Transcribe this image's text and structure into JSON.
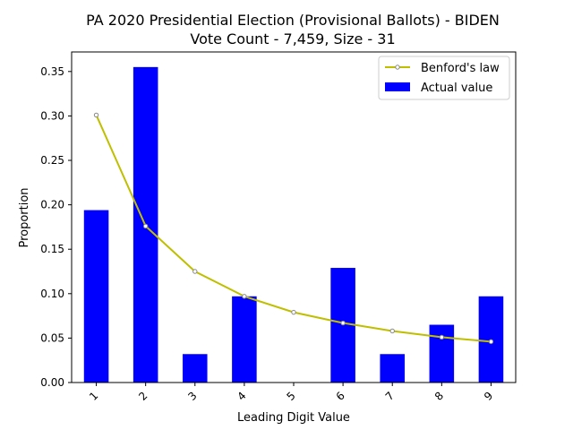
{
  "chart_data": {
    "type": "bar",
    "title_line1": "PA 2020 Presidential Election (Provisional Ballots) - BIDEN",
    "title_line2": "Vote Count - 7,459, Size - 31",
    "xlabel": "Leading Digit Value",
    "ylabel": "Proportion",
    "categories": [
      "1",
      "2",
      "3",
      "4",
      "5",
      "6",
      "7",
      "8",
      "9"
    ],
    "ylim": [
      0,
      0.372
    ],
    "yticks": [
      "0.00",
      "0.05",
      "0.10",
      "0.15",
      "0.20",
      "0.25",
      "0.30",
      "0.35"
    ],
    "grid": false,
    "legend_position": "top-right",
    "series": [
      {
        "name": "Benford's law",
        "kind": "line",
        "color": "#bfbf00",
        "values": [
          0.301,
          0.176,
          0.125,
          0.097,
          0.079,
          0.067,
          0.058,
          0.051,
          0.046
        ]
      },
      {
        "name": "Actual value",
        "kind": "bar",
        "color": "#0000ff",
        "values": [
          0.194,
          0.355,
          0.032,
          0.097,
          0.0,
          0.129,
          0.032,
          0.065,
          0.097
        ]
      }
    ]
  }
}
